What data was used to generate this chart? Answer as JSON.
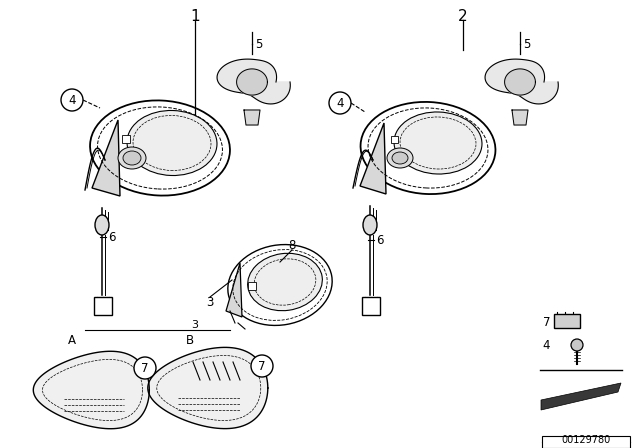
{
  "bg_color": "#ffffff",
  "line_color": "#000000",
  "gray_light": "#d8d8d8",
  "gray_mid": "#b0b0b0",
  "gray_dark": "#606060"
}
